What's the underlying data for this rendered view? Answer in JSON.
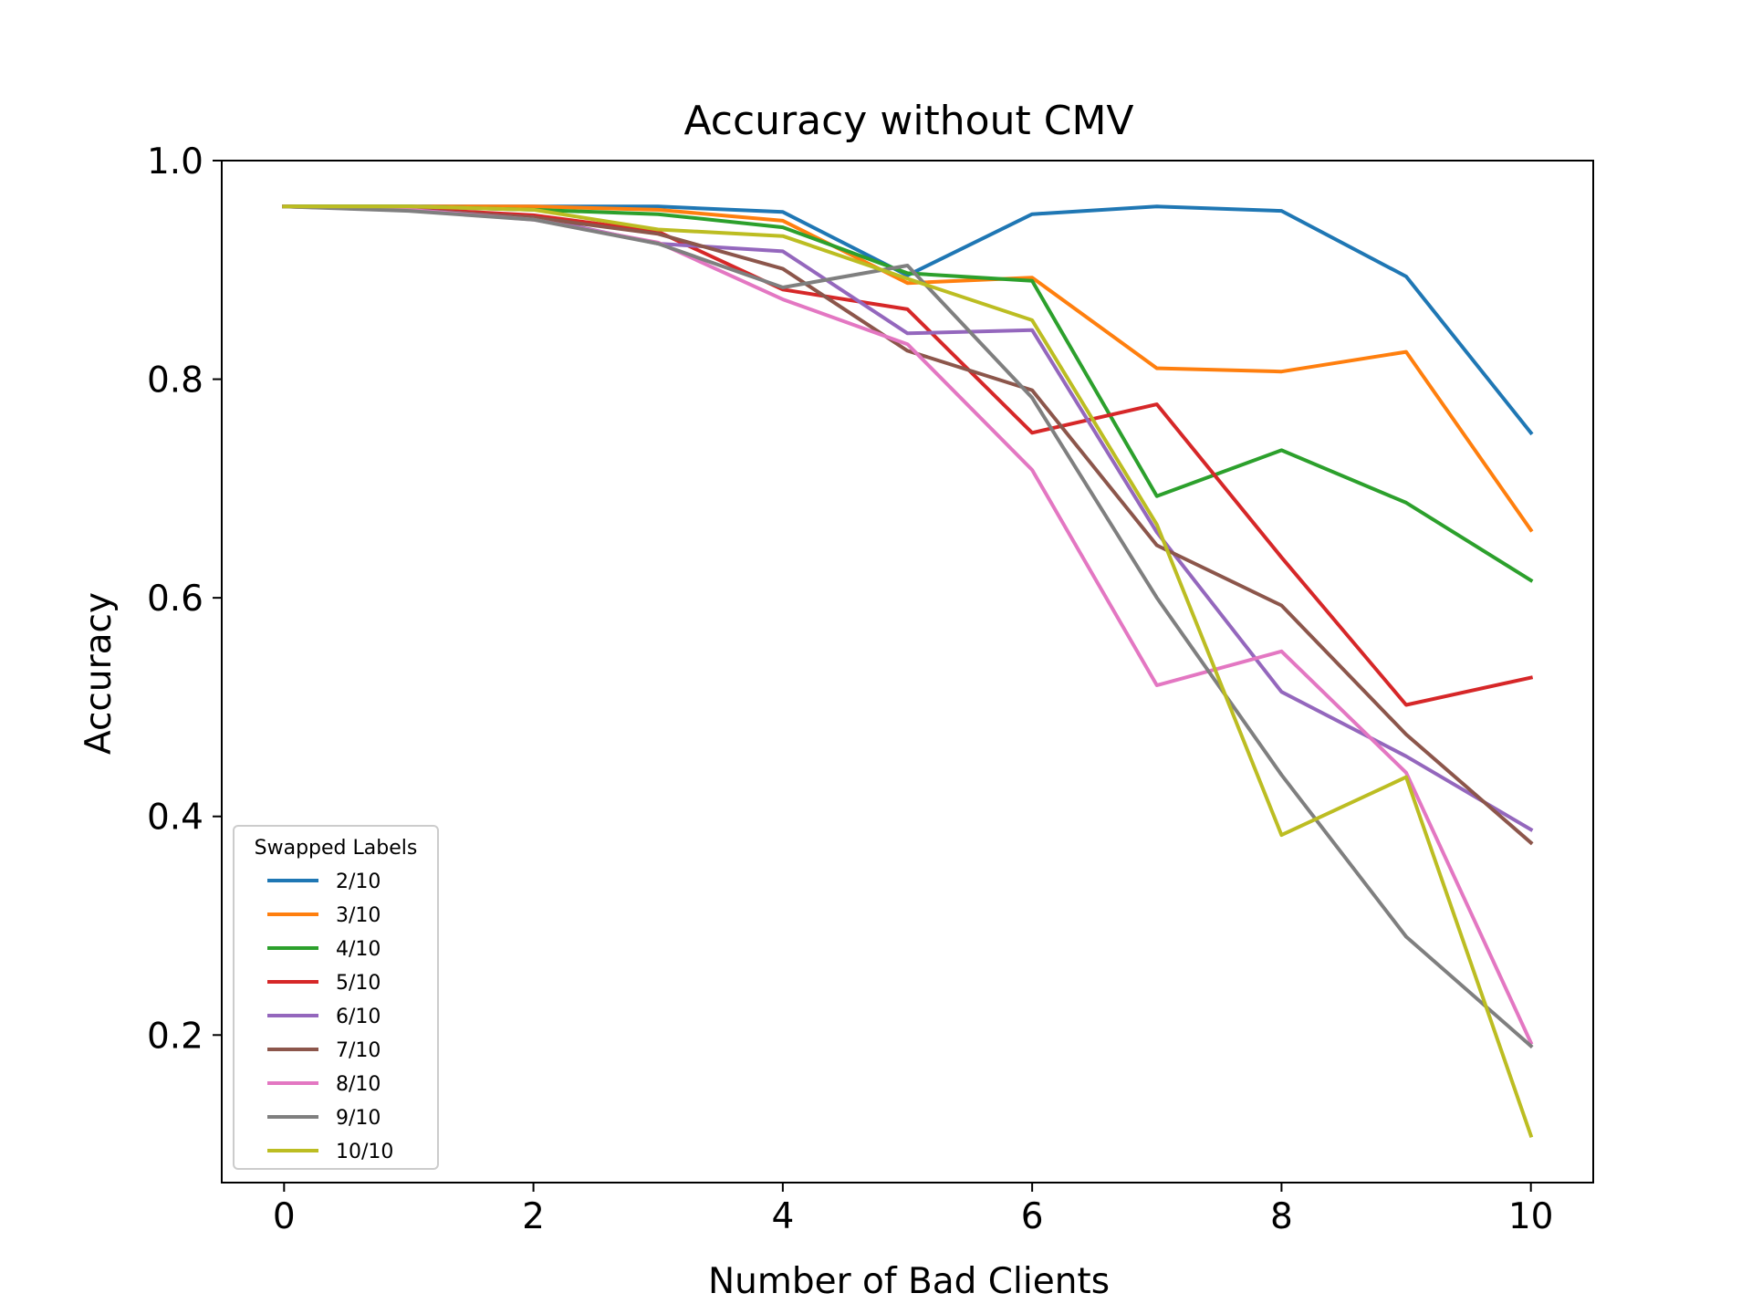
{
  "chart_data": {
    "type": "line",
    "title": "Accuracy without CMV",
    "xlabel": "Number of Bad Clients",
    "ylabel": "Accuracy",
    "xlim": [
      -0.5,
      10.5
    ],
    "ylim": [
      0.065,
      1.0
    ],
    "xticks": [
      0,
      2,
      4,
      6,
      8,
      10
    ],
    "xtick_labels": [
      "0",
      "2",
      "4",
      "6",
      "8",
      "10"
    ],
    "yticks": [
      0.2,
      0.4,
      0.6,
      0.8,
      1.0
    ],
    "ytick_labels": [
      "0.2",
      "0.4",
      "0.6",
      "0.8",
      "1.0"
    ],
    "grid": false,
    "legend": {
      "title": "Swapped Labels",
      "placement": "lower-left"
    },
    "x": [
      0,
      1,
      2,
      3,
      4,
      5,
      6,
      7,
      8,
      9,
      10
    ],
    "series": [
      {
        "name": "2/10",
        "color": "#1f77b4",
        "values": [
          0.958,
          0.958,
          0.958,
          0.958,
          0.953,
          0.895,
          0.951,
          0.958,
          0.954,
          0.894,
          0.751
        ]
      },
      {
        "name": "3/10",
        "color": "#ff7f0e",
        "values": [
          0.958,
          0.958,
          0.958,
          0.955,
          0.945,
          0.888,
          0.893,
          0.81,
          0.807,
          0.825,
          0.662
        ]
      },
      {
        "name": "4/10",
        "color": "#2ca02c",
        "values": [
          0.958,
          0.958,
          0.955,
          0.951,
          0.939,
          0.897,
          0.89,
          0.693,
          0.735,
          0.687,
          0.616
        ]
      },
      {
        "name": "5/10",
        "color": "#d62728",
        "values": [
          0.958,
          0.956,
          0.95,
          0.935,
          0.882,
          0.864,
          0.751,
          0.777,
          0.637,
          0.502,
          0.527
        ]
      },
      {
        "name": "6/10",
        "color": "#9467bd",
        "values": [
          0.958,
          0.955,
          0.948,
          0.924,
          0.917,
          0.842,
          0.845,
          0.66,
          0.514,
          0.455,
          0.388
        ]
      },
      {
        "name": "7/10",
        "color": "#8c564b",
        "values": [
          0.958,
          0.955,
          0.948,
          0.933,
          0.901,
          0.826,
          0.79,
          0.648,
          0.593,
          0.475,
          0.376
        ]
      },
      {
        "name": "8/10",
        "color": "#e377c2",
        "values": [
          0.958,
          0.955,
          0.946,
          0.925,
          0.873,
          0.832,
          0.717,
          0.52,
          0.551,
          0.44,
          0.193
        ]
      },
      {
        "name": "9/10",
        "color": "#7f7f7f",
        "values": [
          0.958,
          0.954,
          0.946,
          0.924,
          0.884,
          0.904,
          0.783,
          0.6,
          0.438,
          0.29,
          0.19
        ]
      },
      {
        "name": "10/10",
        "color": "#bcbd22",
        "values": [
          0.958,
          0.958,
          0.955,
          0.937,
          0.931,
          0.892,
          0.854,
          0.667,
          0.383,
          0.436,
          0.108
        ]
      }
    ]
  }
}
